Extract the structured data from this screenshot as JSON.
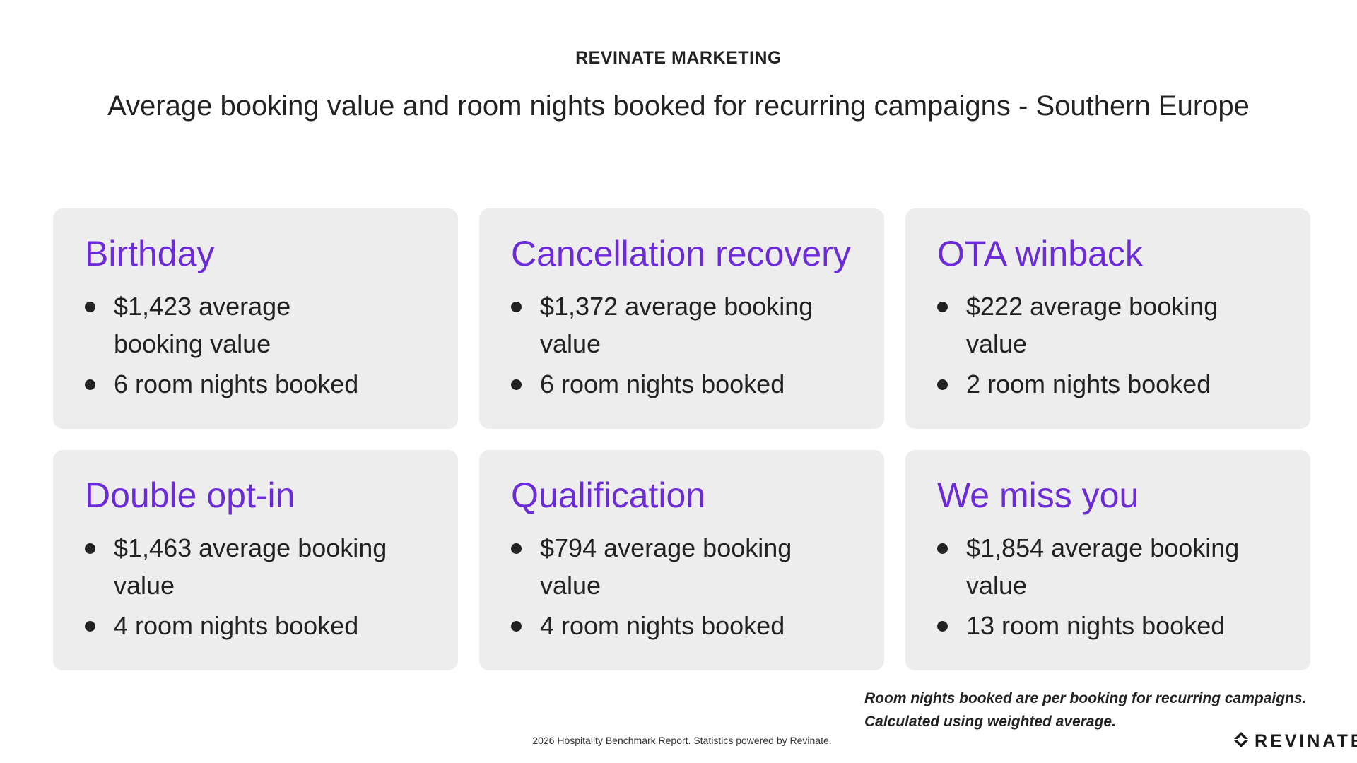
{
  "header": {
    "kicker": "REVINATE MARKETING",
    "title": "Average booking value and room nights booked for recurring campaigns - Southern Europe"
  },
  "cards": [
    {
      "title": "Birthday",
      "bullets": [
        "$1,423 average booking value",
        "6 room nights booked"
      ]
    },
    {
      "title": "Cancellation recovery",
      "bullets": [
        "$1,372 average booking value",
        "6 room nights booked"
      ]
    },
    {
      "title": "OTA winback",
      "bullets": [
        "$222 average booking value",
        "2 room nights booked"
      ]
    },
    {
      "title": "Double opt-in",
      "bullets": [
        "$1,463 average booking value",
        "4 room nights booked"
      ]
    },
    {
      "title": "Qualification",
      "bullets": [
        "$794 average booking value",
        "4 room nights booked"
      ]
    },
    {
      "title": "We miss you",
      "bullets": [
        "$1,854 average booking value",
        "13 room nights booked"
      ]
    }
  ],
  "footer": {
    "note_line1": "Room nights booked are per booking for recurring campaigns.",
    "note_line2": "Calculated using weighted average.",
    "source": "2026 Hospitality Benchmark Report. Statistics powered by Revinate.",
    "brand": "REVINATE",
    "brand_icon": "revinate-logo-icon"
  },
  "colors": {
    "accent": "#6c2bd9",
    "card_bg": "#ededee",
    "text": "#222222"
  }
}
